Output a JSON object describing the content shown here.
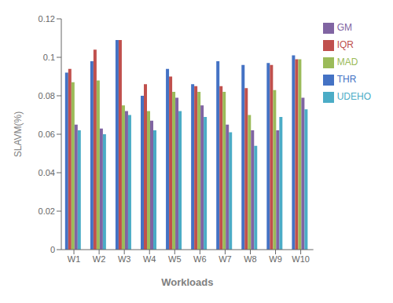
{
  "chart_data": {
    "type": "bar",
    "categories": [
      "W1",
      "W2",
      "W3",
      "W4",
      "W5",
      "W6",
      "W7",
      "W8",
      "W9",
      "W10"
    ],
    "series": [
      {
        "name": "THR",
        "color": "#4472C4",
        "values": [
          0.092,
          0.098,
          0.109,
          0.08,
          0.094,
          0.086,
          0.098,
          0.096,
          0.097,
          0.101
        ]
      },
      {
        "name": "IQR",
        "color": "#C0504D",
        "values": [
          0.094,
          0.104,
          0.109,
          0.086,
          0.09,
          0.085,
          0.085,
          0.084,
          0.096,
          0.099
        ]
      },
      {
        "name": "MAD",
        "color": "#9BBB59",
        "values": [
          0.087,
          0.088,
          0.075,
          0.072,
          0.082,
          0.082,
          0.082,
          0.07,
          0.083,
          0.099
        ]
      },
      {
        "name": "GM",
        "color": "#8064A2",
        "values": [
          0.065,
          0.063,
          0.072,
          0.067,
          0.079,
          0.075,
          0.065,
          0.062,
          0.062,
          0.079
        ]
      },
      {
        "name": "UDEHO",
        "color": "#4BACC6",
        "values": [
          0.062,
          0.06,
          0.07,
          0.062,
          0.072,
          0.069,
          0.061,
          0.054,
          0.069,
          0.073
        ]
      }
    ],
    "xlabel": "Workloads",
    "ylabel": "SLAVM(%)",
    "ylim": [
      0,
      0.12
    ],
    "yticks": [
      0,
      0.02,
      0.04,
      0.06,
      0.08,
      0.1,
      0.12
    ],
    "grid": false,
    "legend": "right"
  }
}
